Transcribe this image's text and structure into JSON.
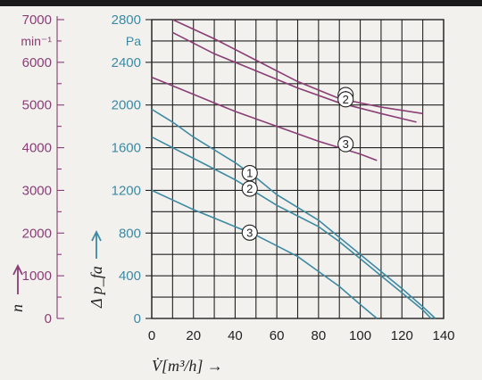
{
  "chart_data": {
    "type": "line",
    "x_axis": {
      "label": "V̇[m³/h] →",
      "ticks": [
        0,
        20,
        40,
        60,
        80,
        100,
        120,
        140
      ],
      "range": [
        0,
        140
      ]
    },
    "pressure_axis": {
      "unit": "Pa",
      "label": "Δ p_fa",
      "ticks": [
        0,
        400,
        800,
        1200,
        1600,
        2000,
        2400,
        2800
      ],
      "range": [
        0,
        2800
      ]
    },
    "speed_axis": {
      "unit": "min⁻¹",
      "label": "n",
      "ticks": [
        0,
        1000,
        2000,
        3000,
        4000,
        5000,
        6000,
        7000
      ],
      "range": [
        0,
        7000
      ]
    },
    "grid": true,
    "colors": {
      "speed": "#8a3e75",
      "pressure": "#3d8aa3"
    },
    "speed_series": [
      {
        "label": "1",
        "x": [
          10,
          30,
          50,
          70,
          90,
          110,
          130
        ],
        "y": [
          7000,
          6550,
          6050,
          5550,
          5150,
          4950,
          4800
        ]
      },
      {
        "label": "2",
        "x": [
          10,
          30,
          50,
          70,
          90,
          110,
          127
        ],
        "y": [
          6700,
          6200,
          5800,
          5400,
          5050,
          4800,
          4600
        ]
      },
      {
        "label": "3",
        "x": [
          0,
          20,
          40,
          60,
          80,
          100,
          108
        ],
        "y": [
          5650,
          5250,
          4850,
          4500,
          4150,
          3850,
          3700
        ]
      }
    ],
    "pressure_series": [
      {
        "label": "1",
        "x": [
          0,
          10,
          20,
          30,
          40,
          50,
          60,
          70,
          80,
          90,
          100,
          110,
          120,
          130,
          136
        ],
        "y": [
          1960,
          1840,
          1700,
          1580,
          1460,
          1320,
          1160,
          1040,
          920,
          760,
          600,
          440,
          280,
          110,
          0
        ]
      },
      {
        "label": "2",
        "x": [
          0,
          10,
          20,
          30,
          40,
          50,
          60,
          70,
          80,
          90,
          100,
          110,
          120,
          130,
          134
        ],
        "y": [
          1700,
          1600,
          1500,
          1400,
          1300,
          1180,
          1060,
          960,
          860,
          720,
          560,
          400,
          240,
          80,
          0
        ]
      },
      {
        "label": "3",
        "x": [
          0,
          10,
          20,
          30,
          40,
          50,
          60,
          70,
          80,
          90,
          100,
          108
        ],
        "y": [
          1200,
          1110,
          1020,
          940,
          860,
          780,
          680,
          580,
          440,
          300,
          130,
          0
        ]
      }
    ],
    "badges": [
      {
        "label": "1",
        "series": "speed",
        "x": 90
      },
      {
        "label": "2",
        "series": "speed",
        "x": 90
      },
      {
        "label": "3",
        "series": "speed",
        "x": 90
      },
      {
        "label": "1",
        "series": "pressure",
        "x": 47
      },
      {
        "label": "2",
        "series": "pressure",
        "x": 47
      },
      {
        "label": "3",
        "series": "pressure",
        "x": 47
      }
    ]
  }
}
